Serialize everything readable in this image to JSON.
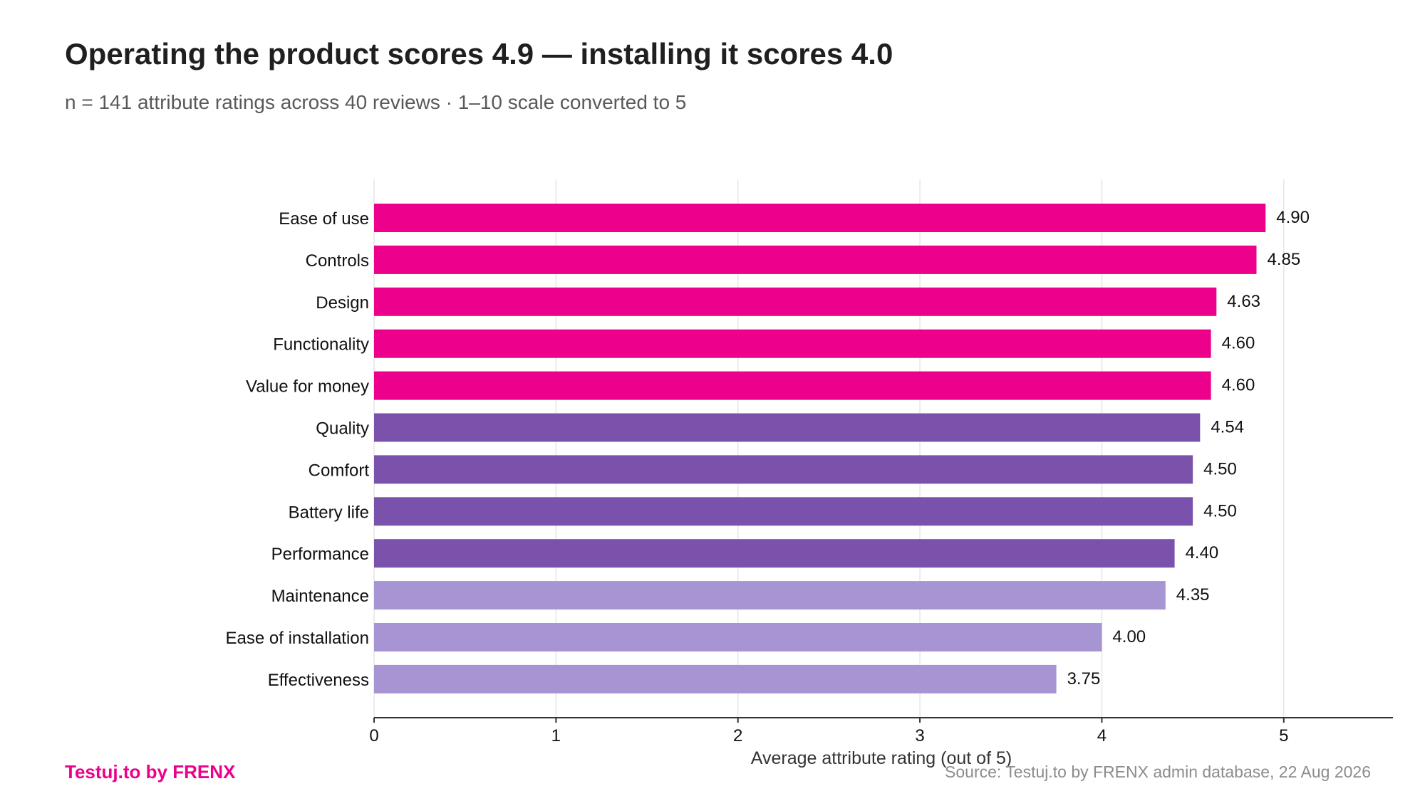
{
  "header": {
    "title": "Operating the product scores 4.9 — installing it scores 4.0",
    "subtitle": "n = 141 attribute ratings across 40 reviews · 1–10 scale converted to 5"
  },
  "footer": {
    "brand": "Testuj.to by FRENX",
    "source": "Source: Testuj.to by FRENX admin database, 22 Aug 2026"
  },
  "colors": {
    "brand": "#ec008c",
    "high": "#ec008c",
    "mid": "#7b52ab",
    "low": "#a794d2",
    "grid": "#e6e6e6",
    "axis": "#333333"
  },
  "chart_data": {
    "type": "bar",
    "orientation": "horizontal",
    "title": "Operating the product scores 4.9 — installing it scores 4.0",
    "subtitle": "n = 141 attribute ratings across 40 reviews · 1–10 scale converted to 5",
    "xlabel": "Average attribute rating (out of 5)",
    "ylabel": "",
    "xlim": [
      0,
      5.6
    ],
    "xticks": [
      0,
      1,
      2,
      3,
      4,
      5
    ],
    "grid": true,
    "categories": [
      "Ease of use",
      "Controls",
      "Design",
      "Functionality",
      "Value for money",
      "Quality",
      "Comfort",
      "Battery life",
      "Performance",
      "Maintenance",
      "Ease of installation",
      "Effectiveness"
    ],
    "values": [
      4.9,
      4.85,
      4.63,
      4.6,
      4.6,
      4.54,
      4.5,
      4.5,
      4.4,
      4.35,
      4.0,
      3.75
    ],
    "value_labels": [
      "4.90",
      "4.85",
      "4.63",
      "4.60",
      "4.60",
      "4.54",
      "4.50",
      "4.50",
      "4.40",
      "4.35",
      "4.00",
      "3.75"
    ],
    "color_groups": [
      "high",
      "high",
      "high",
      "high",
      "high",
      "mid",
      "mid",
      "mid",
      "mid",
      "low",
      "low",
      "low"
    ]
  }
}
